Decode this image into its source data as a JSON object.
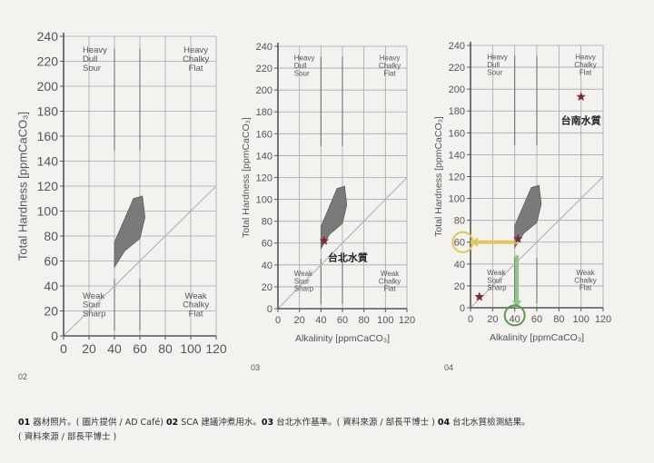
{
  "chart_data": [
    {
      "type": "scatter",
      "figure_number": "02",
      "xlabel": "",
      "ylabel": "Total Hardness [ppmCaCO3]",
      "xlim": [
        0,
        120
      ],
      "ylim": [
        0,
        240
      ],
      "xticks": [
        0,
        20,
        40,
        60,
        80,
        100,
        120
      ],
      "yticks": [
        0,
        20,
        40,
        60,
        80,
        100,
        120,
        140,
        160,
        180,
        200,
        220,
        240
      ],
      "grid": true,
      "quadrant_lines": [
        40,
        60
      ],
      "region_labels": [
        "Heavy\nDull\nSour",
        "Heavy\nChalky\nFlat",
        "Weak\nSour\nSharp",
        "Weak\nChalky\nFlat"
      ],
      "target_zone": [
        [
          40,
          55
        ],
        [
          40,
          75
        ],
        [
          55,
          110
        ],
        [
          62,
          112
        ],
        [
          64,
          95
        ],
        [
          60,
          78
        ],
        [
          48,
          68
        ]
      ],
      "diagonal": [
        [
          0,
          0
        ],
        [
          120,
          120
        ]
      ],
      "markers": [],
      "annotations": [],
      "arrows": [],
      "circles": []
    },
    {
      "type": "scatter",
      "figure_number": "03",
      "xlabel": "Alkalinity [ppmCaCO3]",
      "ylabel": "Total Hardness [ppmCaCO3]",
      "xlim": [
        0,
        120
      ],
      "ylim": [
        0,
        240
      ],
      "xticks": [
        0,
        20,
        40,
        60,
        80,
        100,
        120
      ],
      "yticks": [
        0,
        20,
        40,
        60,
        80,
        100,
        120,
        140,
        160,
        180,
        200,
        220,
        240
      ],
      "grid": true,
      "quadrant_lines": [
        40,
        60
      ],
      "region_labels": [
        "Heavy\nDull\nSour",
        "Heavy\nChalky\nFlat",
        "Weak\nSour\nSharp",
        "Weak\nChalky\nFlat"
      ],
      "target_zone": [
        [
          40,
          55
        ],
        [
          40,
          75
        ],
        [
          55,
          110
        ],
        [
          62,
          112
        ],
        [
          64,
          95
        ],
        [
          60,
          78
        ],
        [
          48,
          68
        ]
      ],
      "diagonal": [
        [
          0,
          0
        ],
        [
          120,
          120
        ]
      ],
      "markers": [
        {
          "x": 43,
          "y": 62,
          "label": "台北水質"
        }
      ],
      "annotations": [],
      "arrows": [],
      "circles": []
    },
    {
      "type": "scatter",
      "figure_number": "04",
      "xlabel": "Alkalinity [ppmCaCO3]",
      "ylabel": "Total Hardness [ppmCaCO3]",
      "xlim": [
        0,
        120
      ],
      "ylim": [
        0,
        240
      ],
      "xticks": [
        0,
        20,
        40,
        60,
        80,
        100,
        120
      ],
      "yticks": [
        0,
        20,
        40,
        60,
        80,
        100,
        120,
        140,
        160,
        180,
        200,
        220,
        240
      ],
      "grid": true,
      "quadrant_lines": [
        40,
        60
      ],
      "region_labels": [
        "Heavy\nDull\nSour",
        "Heavy\nChalky\nFlat",
        "Weak\nSour\nSharp",
        "Weak\nChalky\nFlat"
      ],
      "target_zone": [
        [
          40,
          55
        ],
        [
          40,
          75
        ],
        [
          55,
          110
        ],
        [
          62,
          112
        ],
        [
          64,
          95
        ],
        [
          60,
          78
        ],
        [
          48,
          68
        ]
      ],
      "diagonal": [
        [
          0,
          0
        ],
        [
          120,
          120
        ]
      ],
      "markers": [
        {
          "x": 43,
          "y": 63,
          "label": ""
        },
        {
          "x": 100,
          "y": 193,
          "label": "台南水質"
        },
        {
          "x": 8,
          "y": 10,
          "label": ""
        }
      ],
      "annotations": [],
      "arrows": [
        {
          "from": [
            43,
            60
          ],
          "to": [
            0,
            60
          ],
          "color": "#e0c65c"
        },
        {
          "from": [
            42,
            48
          ],
          "to": [
            42,
            0
          ],
          "color": "#8fc48a"
        }
      ],
      "circles": [
        {
          "x": -7,
          "y": 60,
          "color": "#e0c65c"
        },
        {
          "x": 40,
          "y": -7,
          "color": "#5a9a4f"
        }
      ]
    }
  ],
  "caption": {
    "p1_num": "01",
    "p1_text": " 器材照片。( 圖片提供 / AD Café) ",
    "p2_num": "02",
    "p2_text": " SCA 建議沖煮用水。",
    "p3_num": "03",
    "p3_text": " 台北水作基準。( 資料來源 / 部長平博士 ) ",
    "p4_num": "04",
    "p4_text": " 台北水質檢測結果。",
    "line2": "( 資料來源 / 部長平博士 )"
  },
  "colors": {
    "axis": "#555555",
    "grid": "#a7a7a7",
    "zone": "#7a7a7a",
    "star": "#7a2a3a",
    "text": "#555555"
  }
}
